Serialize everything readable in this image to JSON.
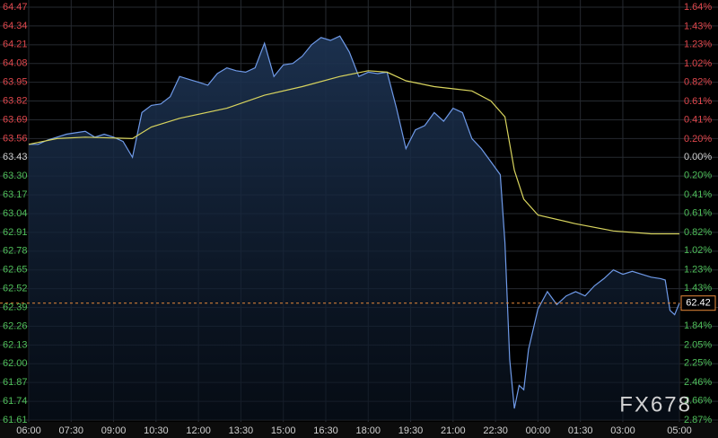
{
  "chart_data": {
    "type": "line",
    "watermark": "FX678",
    "colors": {
      "up": "#e0474c",
      "down": "#4fbf5a",
      "flat": "#d0d0d0",
      "last": "#e8893a",
      "grid": "#262a30"
    },
    "xlim": [
      0,
      1380
    ],
    "xticks": [
      {
        "value": 0,
        "label": "06:00"
      },
      {
        "value": 90,
        "label": "07:30"
      },
      {
        "value": 180,
        "label": "09:00"
      },
      {
        "value": 270,
        "label": "10:30"
      },
      {
        "value": 360,
        "label": "12:00"
      },
      {
        "value": 450,
        "label": "13:30"
      },
      {
        "value": 540,
        "label": "15:00"
      },
      {
        "value": 630,
        "label": "16:30"
      },
      {
        "value": 720,
        "label": "18:00"
      },
      {
        "value": 810,
        "label": "19:30"
      },
      {
        "value": 900,
        "label": "21:00"
      },
      {
        "value": 990,
        "label": "22:30"
      },
      {
        "value": 1080,
        "label": "00:00"
      },
      {
        "value": 1170,
        "label": "01:30"
      },
      {
        "value": 1260,
        "label": "03:00"
      },
      {
        "value": 1380,
        "label": "05:00"
      }
    ],
    "ylim": [
      61.61,
      64.47
    ],
    "yticks": [
      64.47,
      64.34,
      64.21,
      64.08,
      63.95,
      63.82,
      63.69,
      63.56,
      63.43,
      {
        "value": 63.3,
        "label": "63.30"
      },
      63.17,
      63.04,
      62.91,
      62.78,
      62.65,
      62.52,
      62.39,
      62.26,
      62.13,
      {
        "value": 62,
        "label": "62.00"
      },
      61.87,
      61.74,
      61.61
    ],
    "y2lim": [
      -2.87,
      1.64
    ],
    "y2ticks": [
      {
        "value": 1.64,
        "label": "1.64%"
      },
      {
        "value": 1.43,
        "label": "1.43%"
      },
      {
        "value": 1.23,
        "label": "1.23%"
      },
      {
        "value": 1.02,
        "label": "1.02%"
      },
      {
        "value": 0.82,
        "label": "0.82%"
      },
      {
        "value": 0.61,
        "label": "0.61%"
      },
      {
        "value": 0.41,
        "label": "0.41%"
      },
      {
        "value": 0.2,
        "label": "0.20%"
      },
      {
        "value": 0,
        "label": "0.00%"
      },
      {
        "value": -0.2,
        "label": "0.20%"
      },
      {
        "value": -0.41,
        "label": "0.41%"
      },
      {
        "value": -0.61,
        "label": "0.61%"
      },
      {
        "value": -0.82,
        "label": "0.82%"
      },
      {
        "value": -1.02,
        "label": "1.02%"
      },
      {
        "value": -1.23,
        "label": "1.23%"
      },
      {
        "value": -1.43,
        "label": "1.43%"
      },
      {
        "value": -1.64,
        "label": "1.64%"
      },
      {
        "value": -1.84,
        "label": "1.84%"
      },
      {
        "value": -2.05,
        "label": "2.05%"
      },
      {
        "value": -2.25,
        "label": "2.25%"
      },
      {
        "value": -2.46,
        "label": "2.46%"
      },
      {
        "value": -2.66,
        "label": "2.66%"
      },
      {
        "value": -2.87,
        "label": "2.87%"
      }
    ],
    "series": [
      {
        "color": "#6f9ae8",
        "x": [
          0,
          20,
          40,
          60,
          80,
          100,
          120,
          140,
          160,
          180,
          200,
          220,
          240,
          260,
          280,
          300,
          320,
          340,
          360,
          380,
          400,
          420,
          440,
          460,
          480,
          500,
          520,
          540,
          560,
          580,
          600,
          620,
          640,
          660,
          680,
          700,
          720,
          740,
          760,
          780,
          800,
          820,
          840,
          860,
          880,
          900,
          920,
          940,
          960,
          980,
          1000,
          1010,
          1020,
          1030,
          1040,
          1050,
          1060,
          1080,
          1100,
          1120,
          1140,
          1160,
          1180,
          1200,
          1220,
          1240,
          1260,
          1280,
          1300,
          1320,
          1340,
          1350,
          1360,
          1370,
          1380
        ],
        "values": [
          63.52,
          63.52,
          63.55,
          63.57,
          63.59,
          63.6,
          63.61,
          63.57,
          63.59,
          63.57,
          63.54,
          63.43,
          63.74,
          63.79,
          63.8,
          63.85,
          63.99,
          63.97,
          63.95,
          63.93,
          64.01,
          64.05,
          64.03,
          64.02,
          64.05,
          64.22,
          63.99,
          64.07,
          64.08,
          64.13,
          64.21,
          64.26,
          64.24,
          64.27,
          64.16,
          63.99,
          64.02,
          64.01,
          64.02,
          63.77,
          63.49,
          63.62,
          63.65,
          63.74,
          63.68,
          63.77,
          63.74,
          63.56,
          63.49,
          63.4,
          63.31,
          62.84,
          62.03,
          61.69,
          61.85,
          61.82,
          62.1,
          62.38,
          62.5,
          62.41,
          62.47,
          62.5,
          62.47,
          62.54,
          62.59,
          62.65,
          62.62,
          62.64,
          62.62,
          62.6,
          62.59,
          62.58,
          62.37,
          62.34,
          62.42
        ]
      },
      {
        "color": "#d8d45e",
        "x": [
          0,
          60,
          120,
          220,
          260,
          320,
          420,
          500,
          580,
          660,
          720,
          760,
          800,
          860,
          940,
          980,
          1010,
          1030,
          1050,
          1080,
          1160,
          1240,
          1320,
          1380
        ],
        "values": [
          63.52,
          63.56,
          63.57,
          63.56,
          63.64,
          63.7,
          63.77,
          63.86,
          63.92,
          63.99,
          64.03,
          64.02,
          63.96,
          63.92,
          63.89,
          63.82,
          63.71,
          63.34,
          63.14,
          63.03,
          62.97,
          62.92,
          62.9,
          62.9
        ]
      }
    ]
  }
}
